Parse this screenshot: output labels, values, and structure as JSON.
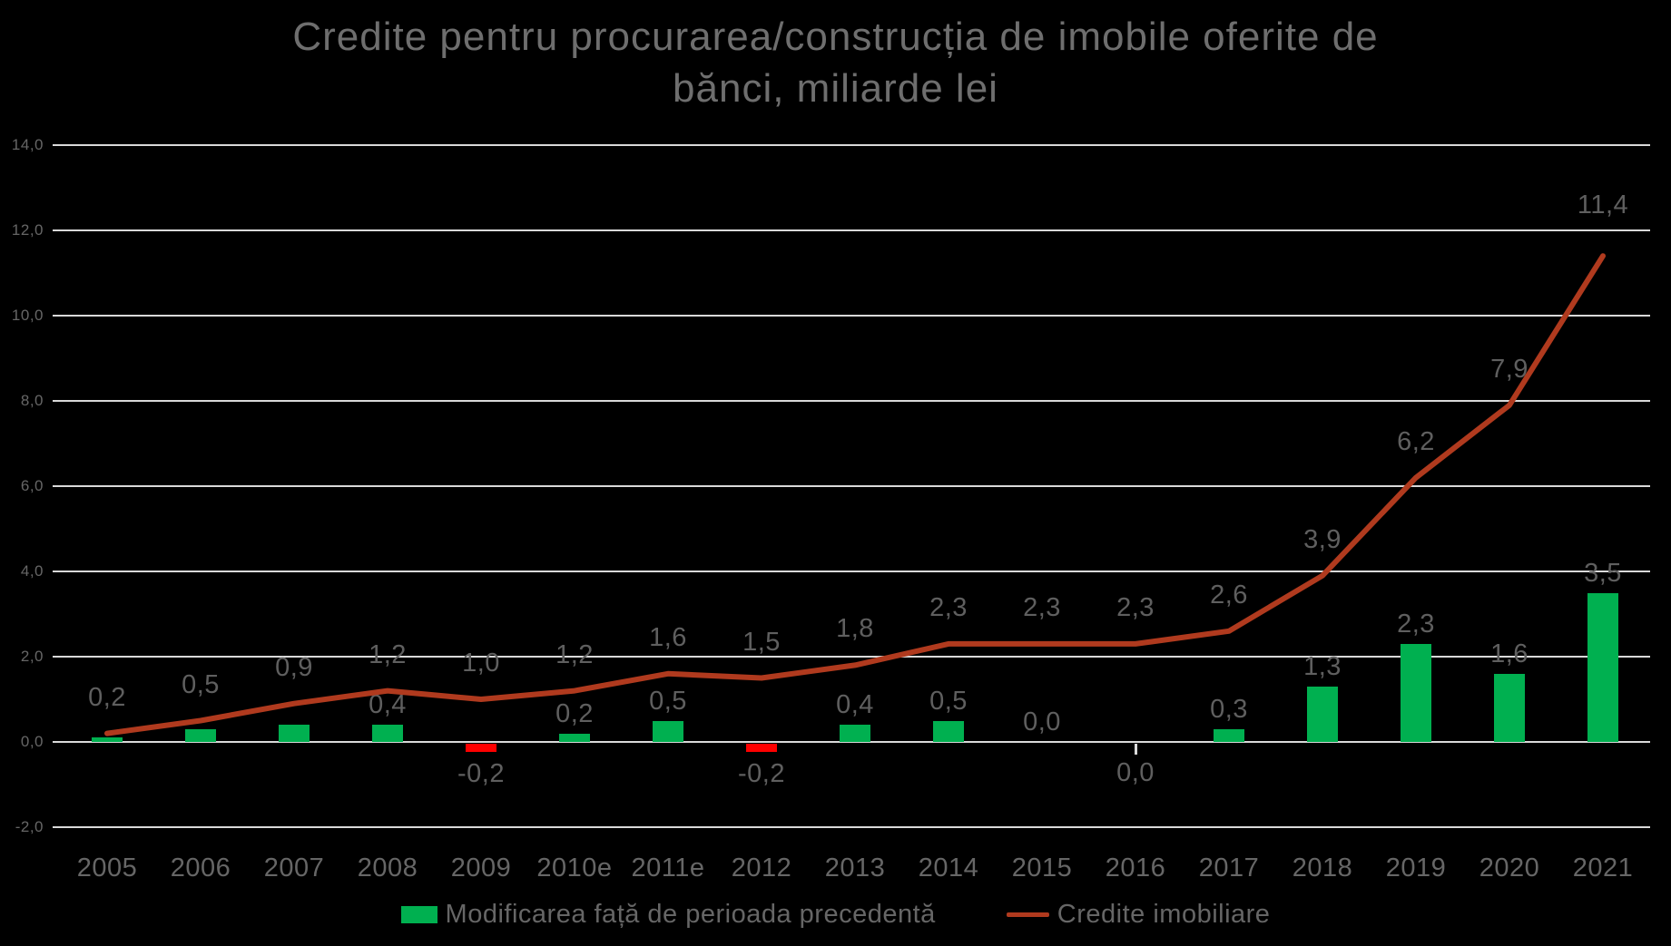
{
  "title": {
    "line1": "Credite pentru procurarea/construcția de imobile oferite de",
    "line2": "bănci, miliarde lei"
  },
  "legend": {
    "items": [
      {
        "label": "Modificarea față de perioada precedentă",
        "marker": "bar-swatch",
        "color": "#00B050"
      },
      {
        "label": "Credite imobiliare",
        "marker": "line-swatch",
        "color": "#B03A1E"
      }
    ],
    "position": "bottom"
  },
  "colors": {
    "background": "#000000",
    "title_text": "#6e6e6e",
    "axis_text": "#666666",
    "data_label_text": "#5f5f5f",
    "gridline": "#D9D9D9",
    "bar_positive": "#00B050",
    "bar_negative": "#FF0000",
    "line": "#B03A1E"
  },
  "chart_data": {
    "type": "bar",
    "combo": "bar+line",
    "title": "Credite pentru procurarea/construcția de imobile oferite de bănci, miliarde lei",
    "xlabel": "",
    "ylabel": "",
    "grid": true,
    "legend_position": "bottom",
    "categories": [
      "2005",
      "2006",
      "2007",
      "2008",
      "2009",
      "2010e",
      "2011e",
      "2012",
      "2013",
      "2014",
      "2015",
      "2016",
      "2017",
      "2018",
      "2019",
      "2020",
      "2021"
    ],
    "series": [
      {
        "name": "Modificarea față de perioada precedentă",
        "type": "bar",
        "color_positive": "#00B050",
        "color_negative": "#FF0000",
        "values": [
          0.1,
          0.3,
          0.4,
          0.4,
          -0.2,
          0.2,
          0.5,
          -0.2,
          0.4,
          0.5,
          0.0,
          0.0,
          0.3,
          1.3,
          2.3,
          1.6,
          3.5
        ],
        "labels": [
          "",
          "",
          "",
          "0,4",
          "-0,2",
          "0,2",
          "0,5",
          "-0,2",
          "0,4",
          "0,5",
          "0,0",
          "0,0",
          "0,3",
          "1,3",
          "2,3",
          "1,6",
          "3,5"
        ]
      },
      {
        "name": "Credite imobiliare",
        "type": "line",
        "color": "#B03A1E",
        "values": [
          0.2,
          0.5,
          0.9,
          1.2,
          1.0,
          1.2,
          1.6,
          1.5,
          1.8,
          2.3,
          2.3,
          2.3,
          2.6,
          3.9,
          6.2,
          7.9,
          11.4
        ],
        "labels": [
          "0,2",
          "0,5",
          "0,9",
          "1,2",
          "1,0",
          "1,2",
          "1,6",
          "1,5",
          "1,8",
          "2,3",
          "2,3",
          "2,3",
          "2,6",
          "3,9",
          "6,2",
          "7,9",
          "11,4"
        ]
      }
    ],
    "y_axis": {
      "min": -2.0,
      "max": 14.0,
      "step": 2.0,
      "tick_labels": [
        "14,0",
        "12,0",
        "10,0",
        "8,0",
        "6,0",
        "4,0",
        "2,0",
        "0,0",
        "-2,0"
      ]
    },
    "zero_tick_category": "2016"
  }
}
